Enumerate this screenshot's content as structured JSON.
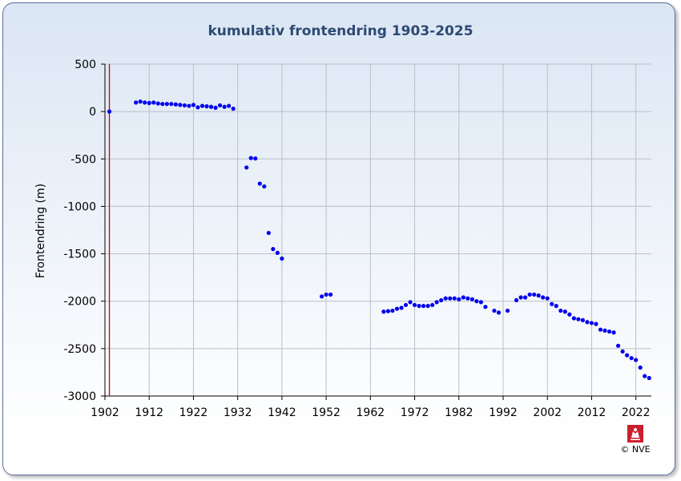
{
  "chart_data": {
    "type": "scatter",
    "title": "kumulativ frontendring 1903-2025",
    "xlabel": "",
    "ylabel": "Frontendring (m)",
    "xlim": [
      1902,
      2025.5
    ],
    "ylim": [
      -3000,
      500
    ],
    "x_ticks": [
      1902,
      1912,
      1922,
      1932,
      1942,
      1952,
      1962,
      1972,
      1982,
      1992,
      2002,
      2012,
      2022
    ],
    "y_ticks": [
      500,
      0,
      -500,
      -1000,
      -1500,
      -2000,
      -2500,
      -3000
    ],
    "grid": true,
    "reference_line_x": 1903,
    "colors": {
      "points": "#0000ee",
      "reference_line": "#cc0000",
      "grid": "#b9c0c9",
      "title": "#2c4a73"
    },
    "x": [
      1903,
      1909,
      1910,
      1911,
      1912,
      1913,
      1914,
      1915,
      1916,
      1917,
      1918,
      1919,
      1920,
      1921,
      1922,
      1923,
      1924,
      1925,
      1926,
      1927,
      1928,
      1929,
      1930,
      1931,
      1934,
      1935,
      1936,
      1937,
      1938,
      1939,
      1940,
      1941,
      1942,
      1951,
      1952,
      1953,
      1965,
      1966,
      1967,
      1968,
      1969,
      1970,
      1971,
      1972,
      1973,
      1974,
      1975,
      1976,
      1977,
      1978,
      1979,
      1980,
      1981,
      1982,
      1983,
      1984,
      1985,
      1986,
      1987,
      1988,
      1990,
      1991,
      1993,
      1995,
      1996,
      1997,
      1998,
      1999,
      2000,
      2001,
      2002,
      2003,
      2004,
      2005,
      2006,
      2007,
      2008,
      2009,
      2010,
      2011,
      2012,
      2013,
      2014,
      2015,
      2016,
      2017,
      2018,
      2019,
      2020,
      2021,
      2022,
      2023,
      2024,
      2025
    ],
    "y": [
      0,
      95,
      105,
      95,
      90,
      95,
      85,
      80,
      80,
      80,
      75,
      70,
      65,
      60,
      70,
      45,
      60,
      55,
      50,
      40,
      65,
      50,
      60,
      30,
      -590,
      -490,
      -495,
      -760,
      -790,
      -1280,
      -1450,
      -1490,
      -1550,
      -1950,
      -1930,
      -1930,
      -2110,
      -2105,
      -2100,
      -2080,
      -2070,
      -2040,
      -2010,
      -2040,
      -2050,
      -2050,
      -2050,
      -2040,
      -2010,
      -1990,
      -1970,
      -1970,
      -1970,
      -1980,
      -1960,
      -1970,
      -1980,
      -2000,
      -2010,
      -2060,
      -2100,
      -2120,
      -2100,
      -1990,
      -1960,
      -1960,
      -1930,
      -1930,
      -1940,
      -1960,
      -1970,
      -2030,
      -2050,
      -2100,
      -2110,
      -2140,
      -2180,
      -2190,
      -2200,
      -2220,
      -2230,
      -2240,
      -2300,
      -2310,
      -2320,
      -2330,
      -2470,
      -2530,
      -2570,
      -2600,
      -2620,
      -2700,
      -2790,
      -2810
    ]
  },
  "branding": {
    "copyright": "© NVE",
    "logo_icon": "nve-crest-icon",
    "logo_color": "#cc1f2d"
  }
}
